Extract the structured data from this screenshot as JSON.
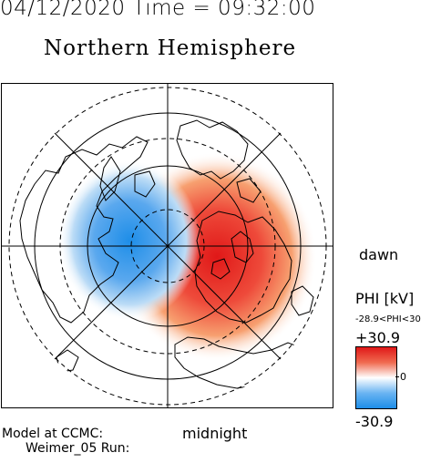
{
  "header": {
    "datetime": "04/12/2020 Time = 09:32:00",
    "title": "Northern Hemisphere"
  },
  "map": {
    "projection": "polar",
    "hemisphere": "north",
    "dawn_label": "dawn",
    "midnight_label": "midnight",
    "potential_cells": [
      {
        "sign": "positive",
        "color": "#e01818",
        "side": "dawn, near pole"
      },
      {
        "sign": "negative",
        "color": "#1e8ee8",
        "side": "dusk, near pole"
      }
    ]
  },
  "colorbar": {
    "title": "PHI [kV]",
    "range_text": "-28.9<PHI<30",
    "max_label": "+30.9",
    "mid_label": "0",
    "min_label": "-30.9",
    "colors": {
      "max": "#e01818",
      "mid": "#ffffff",
      "min": "#1e8ee8"
    }
  },
  "footer": {
    "model": "Model at CCMC:",
    "run": "Weimer_05 Run:"
  }
}
